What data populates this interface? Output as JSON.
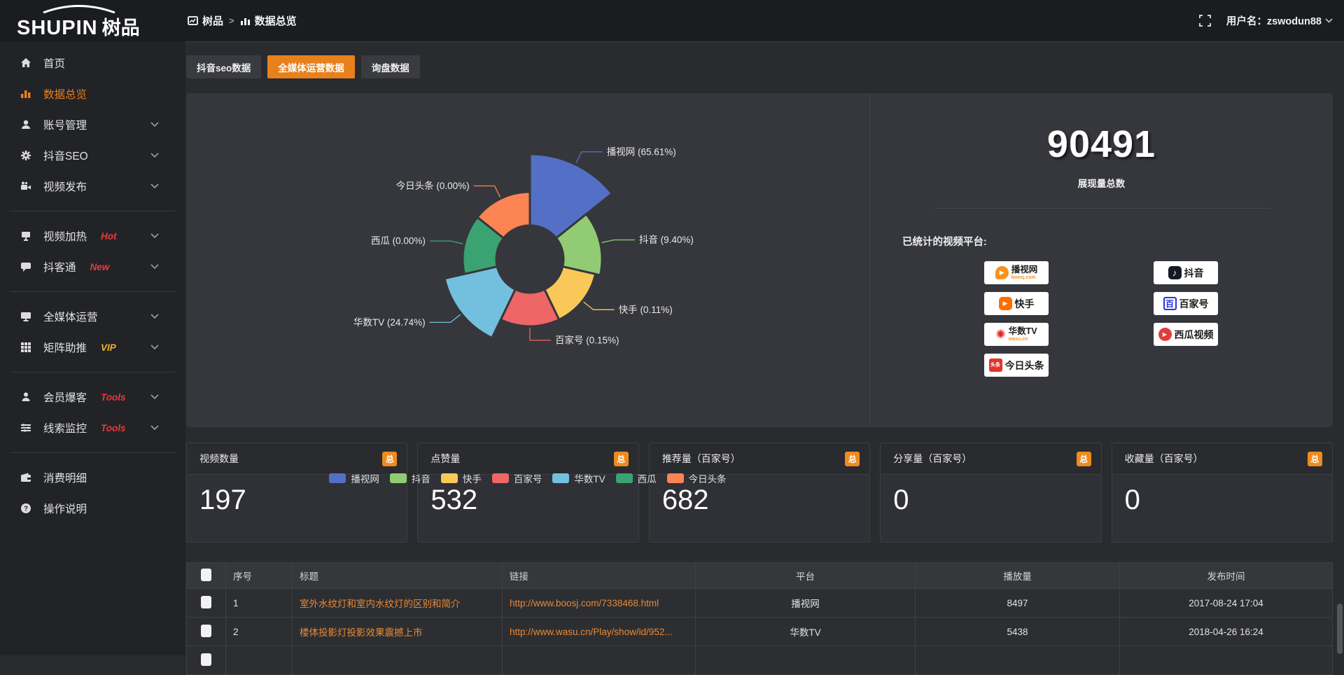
{
  "header": {
    "logo_main": "SHUPIN",
    "logo_sub": "树品",
    "breadcrumb": {
      "root": "树品",
      "separator": ">",
      "current": "数据总览"
    },
    "username": "用户名：zswodun88"
  },
  "sidebar": {
    "groups": [
      {
        "items": [
          {
            "key": "home",
            "icon": "home",
            "label": "首页"
          },
          {
            "key": "data",
            "icon": "chart",
            "label": "数据总览",
            "active": true
          },
          {
            "key": "account",
            "icon": "user",
            "label": "账号管理",
            "chevron": true
          },
          {
            "key": "seo",
            "icon": "gear",
            "label": "抖音SEO",
            "chevron": true
          },
          {
            "key": "publish",
            "icon": "video",
            "label": "视频发布",
            "chevron": true
          }
        ]
      },
      {
        "items": [
          {
            "key": "heat",
            "icon": "screen",
            "label": "视频加热",
            "badge": "Hot",
            "badge_color": "#e03e3c",
            "chevron": true
          },
          {
            "key": "douke",
            "icon": "chat",
            "label": "抖客通",
            "badge": "New",
            "badge_color": "#e03e3c",
            "chevron": true
          }
        ]
      },
      {
        "items": [
          {
            "key": "media",
            "icon": "monitor",
            "label": "全媒体运营",
            "chevron": true
          },
          {
            "key": "matrix",
            "icon": "grid",
            "label": "矩阵助推",
            "badge": "VIP",
            "badge_color": "#f0b429",
            "chevron": true
          }
        ]
      },
      {
        "items": [
          {
            "key": "member",
            "icon": "person",
            "label": "会员爆客",
            "badge": "Tools",
            "badge_color": "#e03e3c",
            "chevron": true
          },
          {
            "key": "leads",
            "icon": "sliders",
            "label": "线索监控",
            "badge": "Tools",
            "badge_color": "#e03e3c",
            "chevron": true
          }
        ]
      },
      {
        "items": [
          {
            "key": "expense",
            "icon": "wallet",
            "label": "消费明细"
          },
          {
            "key": "help",
            "icon": "question",
            "label": "操作说明"
          }
        ]
      }
    ]
  },
  "tabs": [
    {
      "label": "抖音seo数据",
      "active": false
    },
    {
      "label": "全媒体运营数据",
      "active": true
    },
    {
      "label": "询盘数据",
      "active": false
    }
  ],
  "chart_data": {
    "type": "pie",
    "rose": true,
    "inner_radius": 48,
    "label_format": "{name} ({value}%)",
    "legend_position": "bottom",
    "series": [
      {
        "name": "播视网",
        "value": 65.61,
        "color": "#5470c6",
        "outer_radius": 150
      },
      {
        "name": "抖音",
        "value": 9.4,
        "color": "#91cc75",
        "outer_radius": 103
      },
      {
        "name": "快手",
        "value": 0.11,
        "color": "#fac858",
        "outer_radius": 96
      },
      {
        "name": "百家号",
        "value": 0.15,
        "color": "#ee6666",
        "outer_radius": 96
      },
      {
        "name": "华数TV",
        "value": 24.74,
        "color": "#73c0de",
        "outer_radius": 125
      },
      {
        "name": "西瓜",
        "value": 0.0,
        "color": "#3ba272",
        "outer_radius": 96
      },
      {
        "name": "今日头条",
        "value": 0.0,
        "color": "#fc8452",
        "outer_radius": 96
      }
    ]
  },
  "summary": {
    "total": "90491",
    "total_label": "展现量总数",
    "platforms_label": "已统计的视频平台:",
    "columns": [
      [
        {
          "name": "播视网",
          "sub": "boosj.com",
          "logo": "boosj"
        },
        {
          "name": "快手",
          "logo": "kuaishou"
        },
        {
          "name": "华数TV",
          "sub": "wasu.cn",
          "logo": "wasu"
        },
        {
          "name": "今日头条",
          "logo": "toutiao"
        }
      ],
      [
        {
          "name": "抖音",
          "logo": "douyin"
        },
        {
          "name": "百家号",
          "logo": "baijia"
        },
        {
          "name": "西瓜视频",
          "logo": "xigua"
        }
      ]
    ]
  },
  "stat_cards": [
    {
      "title": "视频数量",
      "badge": "总",
      "value": "197"
    },
    {
      "title": "点赞量",
      "badge": "总",
      "value": "532"
    },
    {
      "title": "推荐量（百家号）",
      "badge": "总",
      "value": "682"
    },
    {
      "title": "分享量（百家号）",
      "badge": "总",
      "value": "0"
    },
    {
      "title": "收藏量（百家号）",
      "badge": "总",
      "value": "0"
    }
  ],
  "table": {
    "headers": {
      "seq": "序号",
      "title": "标题",
      "link": "链接",
      "platform": "平台",
      "plays": "播放量",
      "time": "发布时间"
    },
    "rows": [
      {
        "seq": "1",
        "title": "室外水纹灯和室内水纹灯的区别和简介",
        "link": "http://www.boosj.com/7338468.html",
        "platform": "播视网",
        "plays": "8497",
        "time": "2017-08-24 17:04"
      },
      {
        "seq": "2",
        "title": "楼体投影灯投影效果震撼上市",
        "link": "http://www.wasu.cn/Play/show/id/952...",
        "platform": "华数TV",
        "plays": "5438",
        "time": "2018-04-26 16:24"
      }
    ]
  }
}
